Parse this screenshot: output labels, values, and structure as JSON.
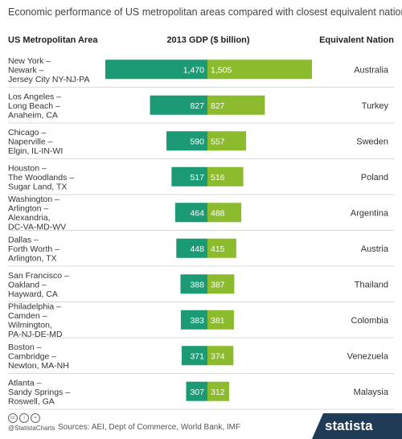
{
  "title": "Economic performance of US metropolitan areas compared with closest equivalent nations",
  "headers": {
    "left": "US Metropolitan Area",
    "center": "2013 GDP ($ billion)",
    "right": "Equivalent Nation"
  },
  "colors": {
    "metro": "#1c9a76",
    "nation": "#8cbc2e",
    "separator": "#d9d9d9",
    "brand_bg": "#1f3b56"
  },
  "chart_data": {
    "type": "bar",
    "orientation": "horizontal-diverging",
    "series": [
      {
        "values": [
          1470,
          827,
          590,
          517,
          464,
          448,
          388,
          383,
          371,
          307
        ],
        "labels": [
          "1,470",
          "827",
          "590",
          "517",
          "464",
          "448",
          "388",
          "383",
          "371",
          "307"
        ]
      },
      {
        "values": [
          1505,
          827,
          557,
          516,
          488,
          415,
          387,
          381,
          374,
          312
        ],
        "labels": [
          "1,505",
          "827",
          "557",
          "516",
          "488",
          "415",
          "387",
          "381",
          "374",
          "312"
        ]
      }
    ],
    "categories": [
      [
        "New York –",
        "Newark –",
        "Jersey City NY-NJ-PA"
      ],
      [
        "Los Angeles –",
        "Long Beach –",
        "Anaheim, CA"
      ],
      [
        "Chicago –",
        "Naperville –",
        "Elgin, IL-IN-WI"
      ],
      [
        "Houston –",
        "The Woodlands –",
        "Sugar Land, TX"
      ],
      [
        "Washington –",
        "Arlington –",
        "Alexandria,",
        "DC-VA-MD-WV"
      ],
      [
        "Dallas –",
        "Forth Worth –",
        "Arlington, TX"
      ],
      [
        "San Francisco –",
        "Oakland –",
        "Hayward, CA"
      ],
      [
        "Philadelphia –",
        "Camden –",
        "Wilmington,",
        "PA-NJ-DE-MD"
      ],
      [
        "Boston –",
        "Cambridge –",
        "Newton, MA-NH"
      ],
      [
        "Atlanta –",
        "Sandy Springs –",
        "Roswell, GA"
      ]
    ],
    "nations": [
      "Australia",
      "Turkey",
      "Sweden",
      "Poland",
      "Argentina",
      "Austria",
      "Thailand",
      "Colombia",
      "Venezuela",
      "Malaysia"
    ],
    "xlim": [
      0,
      1505
    ]
  },
  "footer": {
    "cc_icons": [
      "cc",
      "i",
      "="
    ],
    "credit": "@StatistaCharts",
    "source": "Sources: AEI, Dept of Commerce, World Bank, IMF",
    "brand": "statista"
  }
}
